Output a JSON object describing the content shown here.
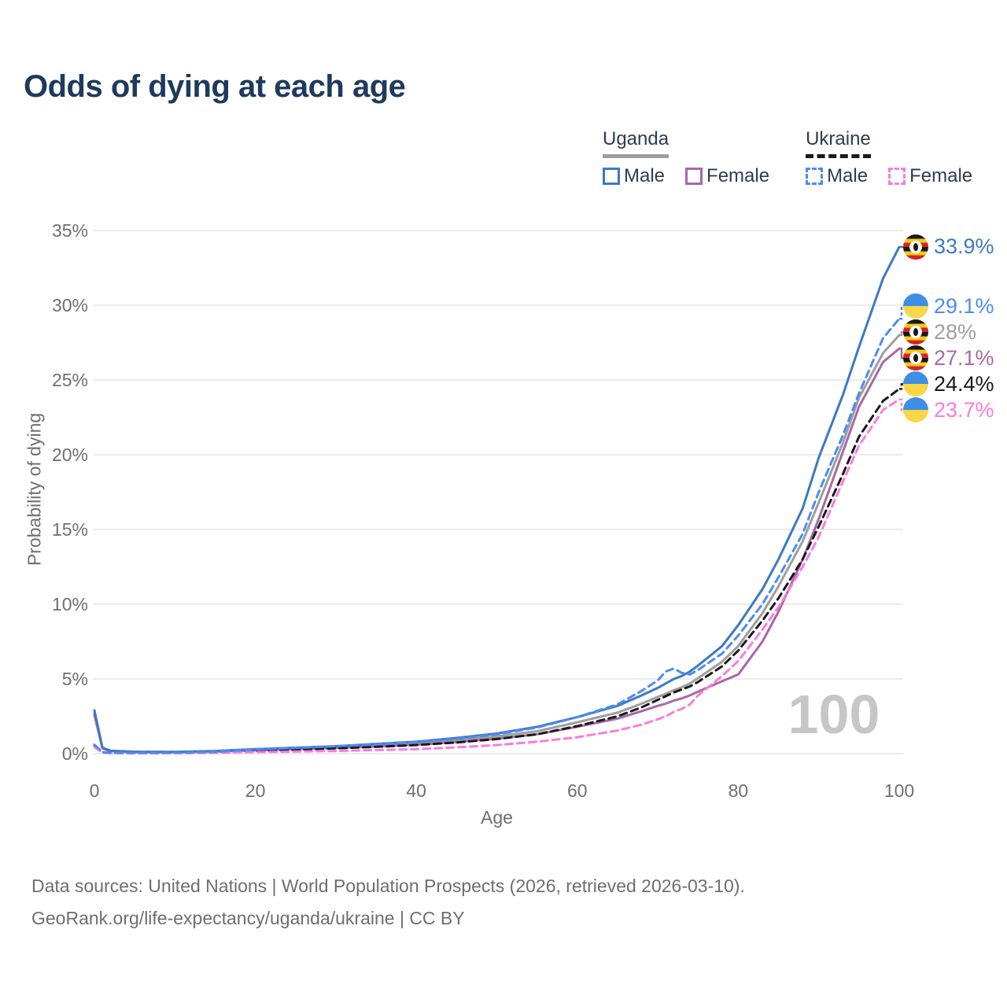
{
  "title": "Odds of dying at each age",
  "watermark": "100",
  "colors": {
    "title": "#1e3a5c",
    "axis_text": "#6f6f6f",
    "grid": "#ebebeb",
    "watermark": "#c6c6c6",
    "footer_text": "#6e6e6e",
    "legend_text": "#2e3c50",
    "uganda_male": "#3d79c2",
    "uganda_female": "#a868a8",
    "uganda_all": "#9e9e9e",
    "ukraine_male": "#4b8bf5",
    "ukraine_female": "#f97ce0",
    "ukraine_all": "#1a1a1a"
  },
  "legend": {
    "groups": [
      {
        "id": "uganda",
        "label": "Uganda",
        "line_style": "solid",
        "line_color": "#9e9e9e",
        "items": [
          {
            "id": "uganda-male",
            "label": "Male",
            "color": "#3d79c2",
            "dashed": false
          },
          {
            "id": "uganda-female",
            "label": "Female",
            "color": "#a868a8",
            "dashed": false
          }
        ]
      },
      {
        "id": "ukraine",
        "label": "Ukraine",
        "line_style": "dashed",
        "line_color": "#1a1a1a",
        "items": [
          {
            "id": "ukraine-male",
            "label": "Male",
            "color": "#4b8bf5",
            "dashed": true
          },
          {
            "id": "ukraine-female",
            "label": "Female",
            "color": "#f97ce0",
            "dashed": true
          }
        ]
      }
    ]
  },
  "footer": {
    "line1": "Data sources: United Nations | World Population Prospects (2026, retrieved 2026-03-10).",
    "line2": "GeoRank.org/life-expectancy/uganda/ukraine | CC BY"
  },
  "chart_data": {
    "type": "line",
    "title": "Odds of dying at each age",
    "xlabel": "Age",
    "ylabel": "Probability of dying",
    "xlim": [
      0,
      100
    ],
    "ylim": [
      0,
      35
    ],
    "x_ticks": [
      0,
      20,
      40,
      60,
      80,
      100
    ],
    "y_ticks": [
      0,
      5,
      10,
      15,
      20,
      25,
      30,
      35
    ],
    "y_tick_suffix": "%",
    "grid": "horizontal",
    "legend_position": "top-right",
    "x": [
      0,
      1,
      2,
      5,
      10,
      15,
      20,
      25,
      30,
      35,
      40,
      45,
      50,
      55,
      60,
      65,
      68,
      70,
      71,
      72,
      73,
      74,
      75,
      78,
      80,
      83,
      85,
      88,
      90,
      93,
      95,
      98,
      100
    ],
    "series": [
      {
        "id": "uganda-male",
        "name": "Uganda Male",
        "color": "#3d79c2",
        "dashed": false,
        "flag": "uganda",
        "end_label": "33.9%",
        "end_value": 33.9,
        "values": [
          2.9,
          0.4,
          0.2,
          0.13,
          0.12,
          0.18,
          0.3,
          0.4,
          0.5,
          0.65,
          0.8,
          1.05,
          1.35,
          1.8,
          2.45,
          3.2,
          3.9,
          4.4,
          4.7,
          5.0,
          5.2,
          5.5,
          5.9,
          7.2,
          8.6,
          11.0,
          13.0,
          16.4,
          19.8,
          24.0,
          27.2,
          31.8,
          33.9
        ]
      },
      {
        "id": "ukraine-male",
        "name": "Ukraine Male",
        "color": "#4b8bf5",
        "dashed": true,
        "flag": "ukraine",
        "end_label": "29.1%",
        "end_value": 29.1,
        "values": [
          0.6,
          0.1,
          0.06,
          0.05,
          0.06,
          0.12,
          0.28,
          0.38,
          0.5,
          0.62,
          0.78,
          1.0,
          1.3,
          1.75,
          2.45,
          3.3,
          4.2,
          4.9,
          5.5,
          5.7,
          5.4,
          5.3,
          5.6,
          6.7,
          7.9,
          10.0,
          11.8,
          14.7,
          17.5,
          21.3,
          24.1,
          27.8,
          29.1
        ]
      },
      {
        "id": "uganda-all",
        "name": "Uganda Both sexes",
        "color": "#9e9e9e",
        "dashed": false,
        "flag": "uganda",
        "end_label": "28%",
        "end_value": 28,
        "values": [
          2.75,
          0.38,
          0.18,
          0.12,
          0.11,
          0.16,
          0.26,
          0.35,
          0.44,
          0.57,
          0.7,
          0.9,
          1.15,
          1.5,
          2.1,
          2.75,
          3.35,
          3.8,
          4.0,
          4.25,
          4.45,
          4.7,
          5.05,
          6.15,
          7.2,
          9.4,
          11.2,
          14.2,
          16.8,
          20.8,
          23.8,
          26.8,
          28.0
        ]
      },
      {
        "id": "uganda-female",
        "name": "Uganda Female",
        "color": "#a868a8",
        "dashed": false,
        "flag": "uganda",
        "end_label": "27.1%",
        "end_value": 27.1,
        "values": [
          2.6,
          0.36,
          0.17,
          0.11,
          0.1,
          0.14,
          0.22,
          0.3,
          0.38,
          0.48,
          0.6,
          0.78,
          1.0,
          1.3,
          1.8,
          2.35,
          2.85,
          3.2,
          3.35,
          3.55,
          3.7,
          3.9,
          4.15,
          4.85,
          5.3,
          7.5,
          9.5,
          13.0,
          15.7,
          20.2,
          23.2,
          26.2,
          27.1
        ]
      },
      {
        "id": "ukraine-all",
        "name": "Ukraine Both sexes",
        "color": "#1a1a1a",
        "dashed": true,
        "flag": "ukraine",
        "end_label": "24.4%",
        "end_value": 24.4,
        "values": [
          0.55,
          0.09,
          0.05,
          0.04,
          0.05,
          0.1,
          0.2,
          0.28,
          0.36,
          0.46,
          0.58,
          0.75,
          0.98,
          1.3,
          1.85,
          2.5,
          3.1,
          3.6,
          3.85,
          4.1,
          4.3,
          4.5,
          4.8,
          5.85,
          6.9,
          8.9,
          10.4,
          13.0,
          15.2,
          18.7,
          21.2,
          23.6,
          24.4
        ]
      },
      {
        "id": "ukraine-female",
        "name": "Ukraine Female",
        "color": "#f97ce0",
        "dashed": true,
        "flag": "ukraine",
        "end_label": "23.7%",
        "end_value": 23.7,
        "values": [
          0.45,
          0.07,
          0.04,
          0.03,
          0.03,
          0.06,
          0.1,
          0.14,
          0.18,
          0.24,
          0.3,
          0.42,
          0.58,
          0.8,
          1.1,
          1.55,
          1.95,
          2.3,
          2.5,
          2.8,
          3.0,
          3.3,
          3.9,
          5.2,
          6.2,
          8.3,
          9.8,
          12.5,
          14.5,
          18.2,
          20.6,
          23.0,
          23.7
        ]
      }
    ]
  }
}
